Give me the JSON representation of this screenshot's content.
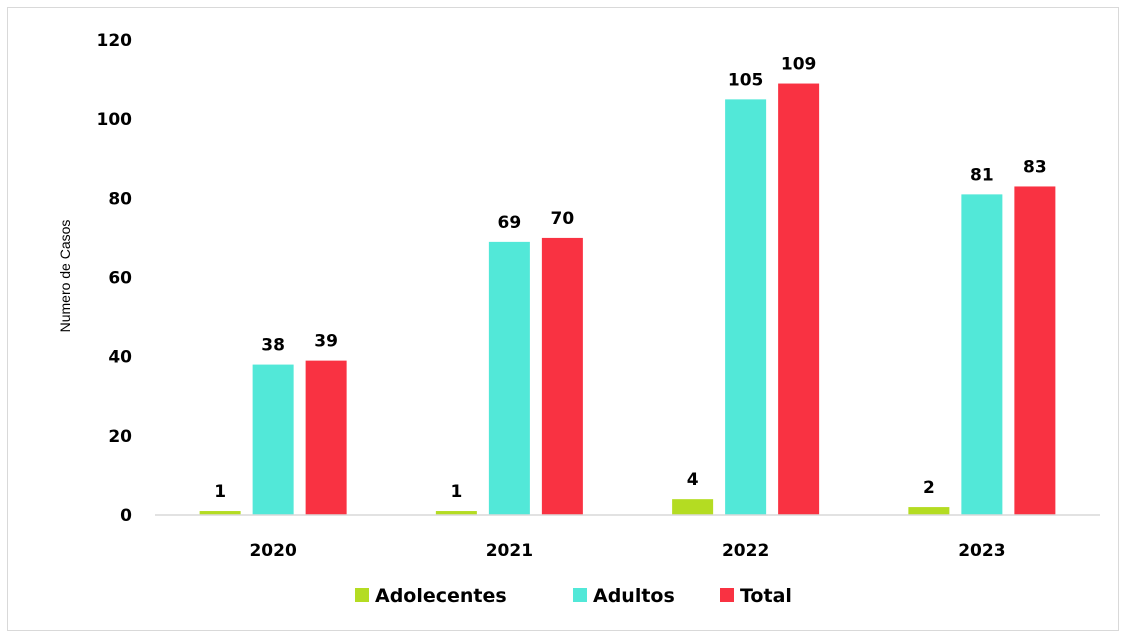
{
  "chart_data": {
    "type": "bar",
    "categories": [
      "2020",
      "2021",
      "2022",
      "2023"
    ],
    "series": [
      {
        "name": "Adolecentes",
        "values": [
          1,
          1,
          4,
          2
        ],
        "color": "#b4dc22"
      },
      {
        "name": "Adultos",
        "values": [
          38,
          69,
          105,
          81
        ],
        "color": "#52e8d8"
      },
      {
        "name": "Total",
        "values": [
          39,
          70,
          109,
          83
        ],
        "color": "#f93242"
      }
    ],
    "ylabel": "Numero de Casos",
    "ylim": [
      0,
      120
    ],
    "yticks": [
      0,
      20,
      40,
      60,
      80,
      100,
      120
    ],
    "grid": false,
    "legend_position": "bottom"
  }
}
